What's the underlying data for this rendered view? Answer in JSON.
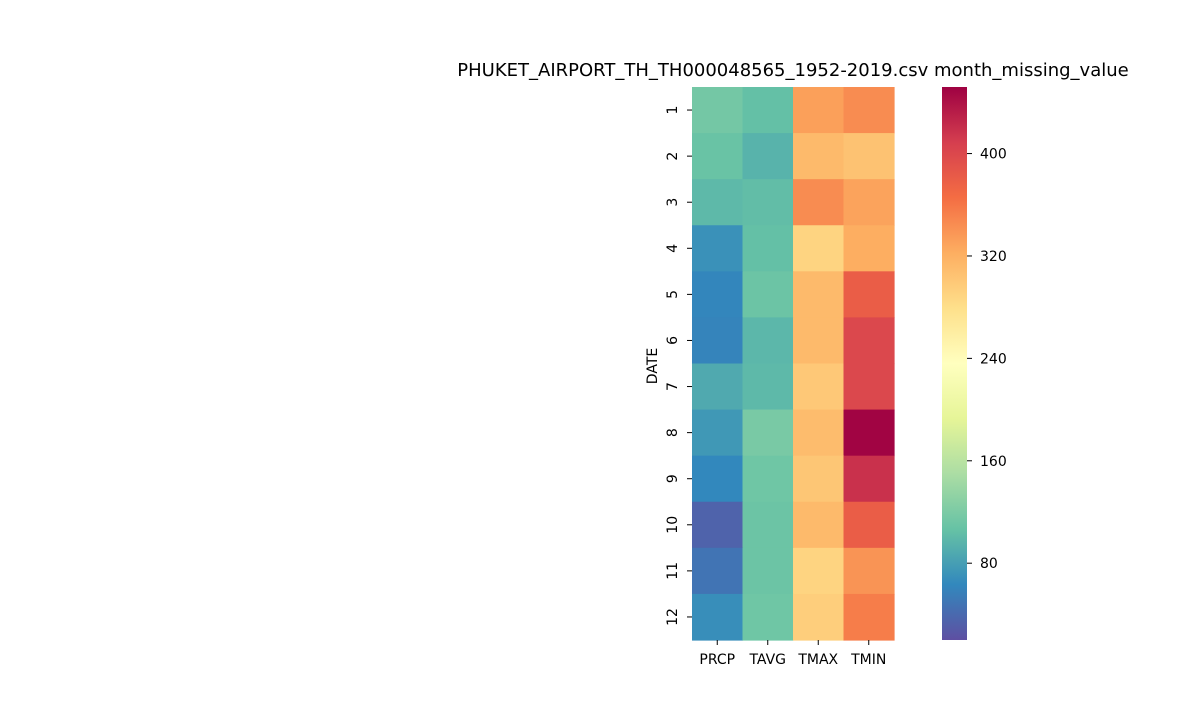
{
  "chart_data": {
    "type": "heatmap",
    "title": "PHUKET_AIRPORT_TH_TH000048565_1952-2019.csv month_missing_value",
    "ylabel": "DATE",
    "xlabel": "",
    "columns": [
      "PRCP",
      "TAVG",
      "TMAX",
      "TMIN"
    ],
    "rows": [
      "1",
      "2",
      "3",
      "4",
      "5",
      "6",
      "7",
      "8",
      "9",
      "10",
      "11",
      "12"
    ],
    "values": [
      [
        115,
        105,
        332,
        345
      ],
      [
        108,
        95,
        312,
        305
      ],
      [
        100,
        103,
        345,
        330
      ],
      [
        70,
        105,
        290,
        322
      ],
      [
        62,
        110,
        312,
        380
      ],
      [
        60,
        98,
        312,
        400
      ],
      [
        88,
        100,
        300,
        400
      ],
      [
        75,
        118,
        310,
        450
      ],
      [
        63,
        112,
        302,
        418
      ],
      [
        35,
        110,
        312,
        380
      ],
      [
        48,
        110,
        290,
        340
      ],
      [
        68,
        112,
        295,
        355
      ]
    ],
    "colormap": "Spectral_r",
    "colorbar": {
      "vmin": 20,
      "vmax": 452,
      "ticks": [
        80,
        160,
        240,
        320,
        400
      ]
    },
    "grid": false,
    "legend": "colorbar-right"
  }
}
